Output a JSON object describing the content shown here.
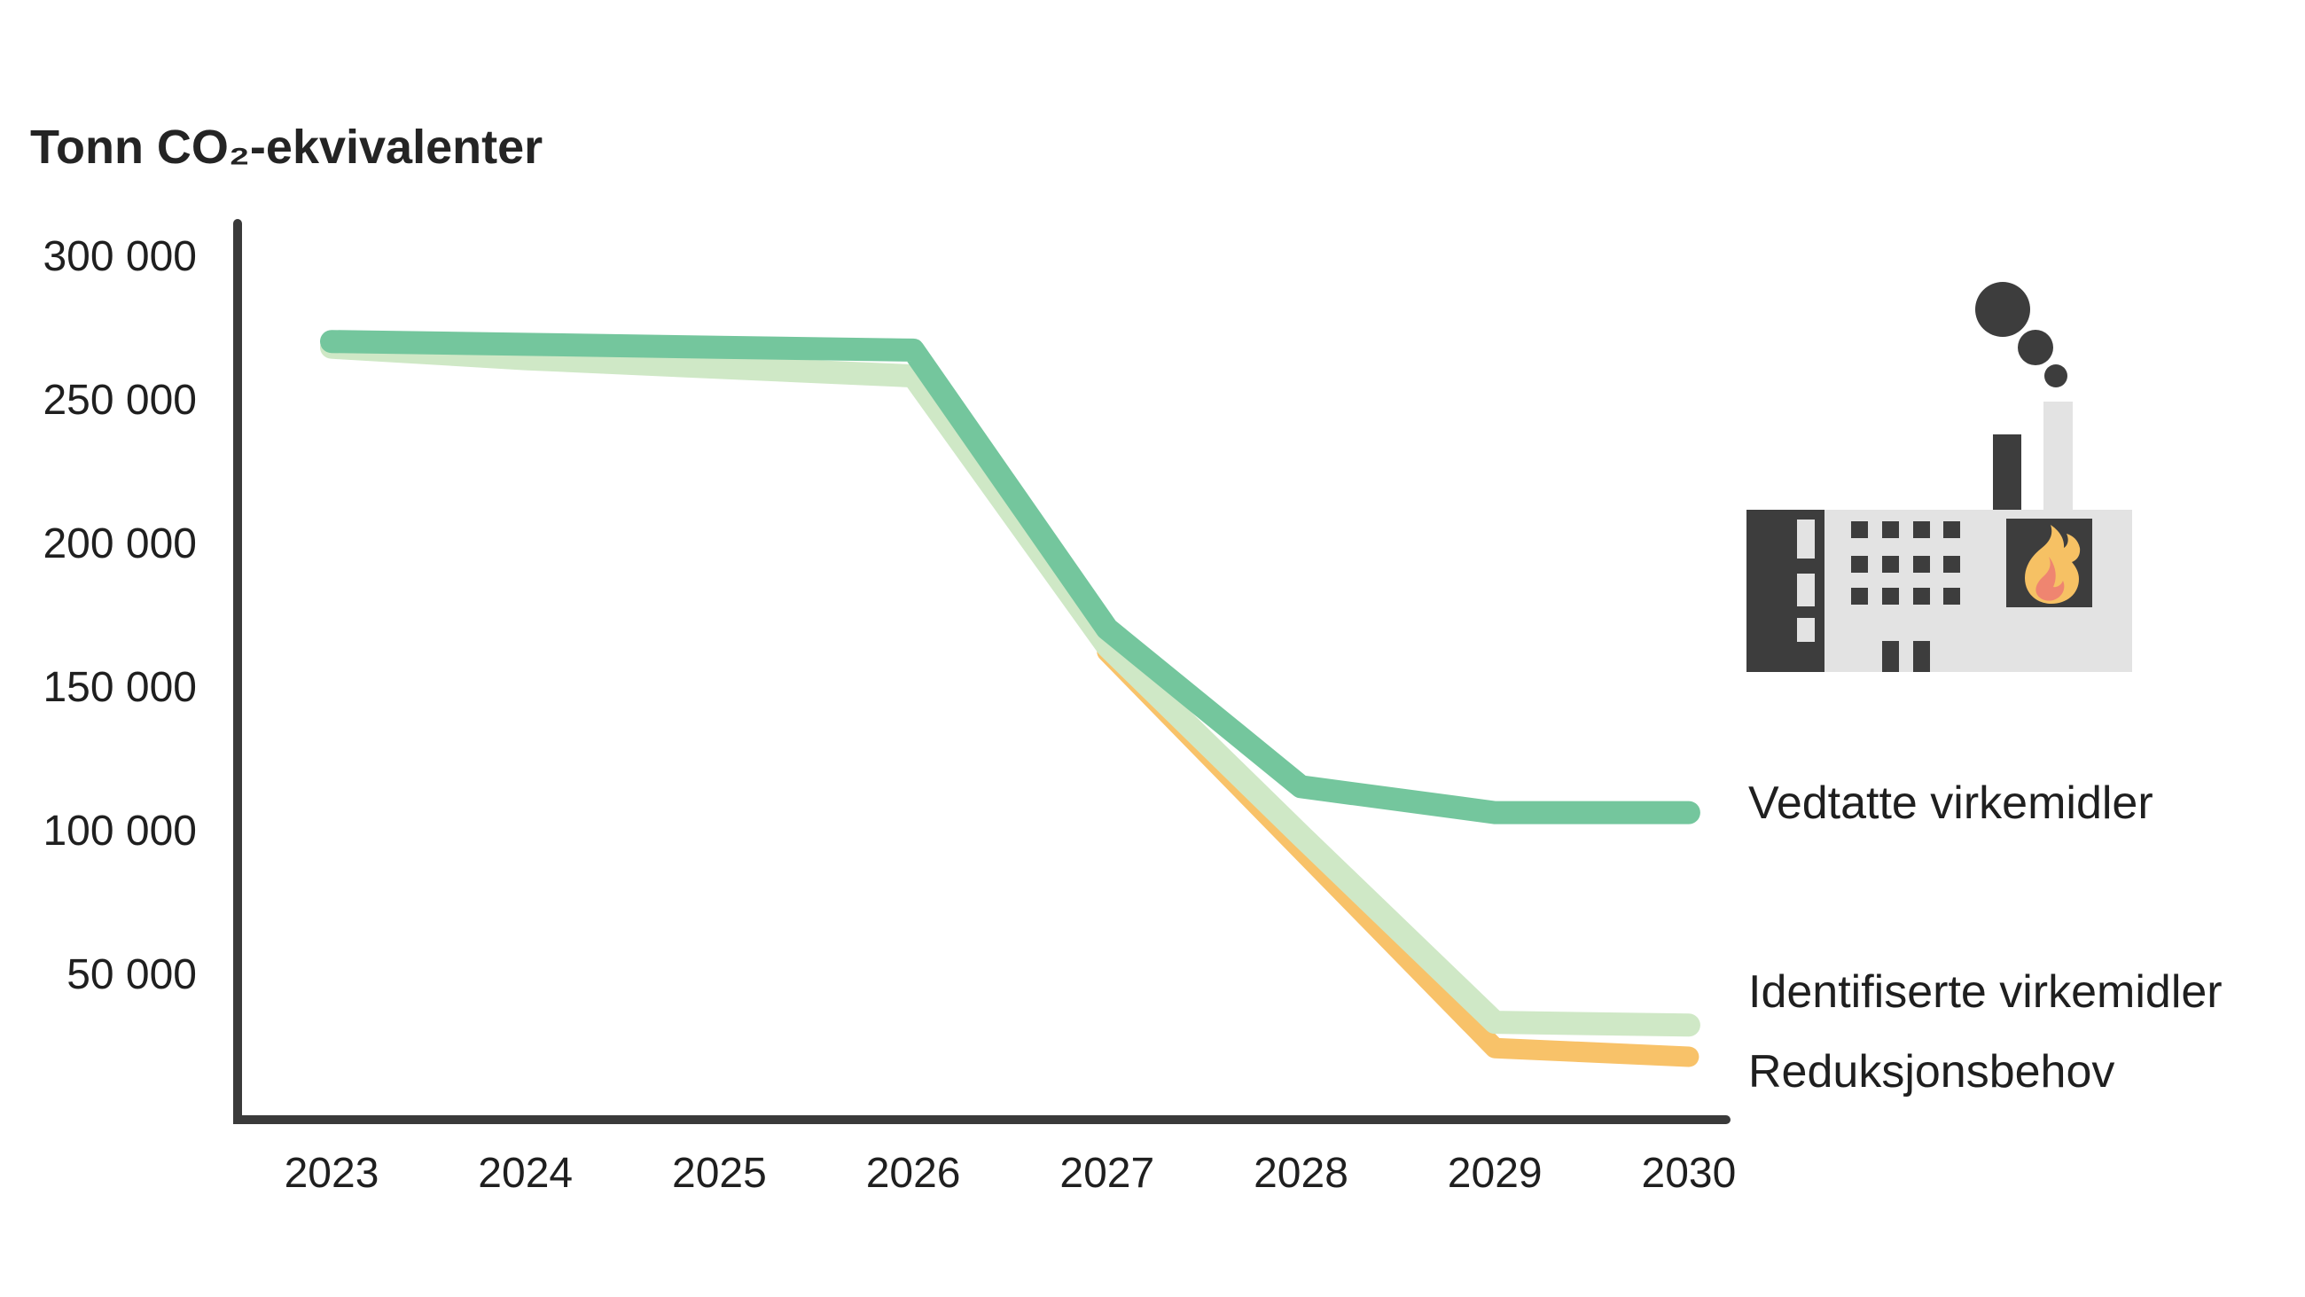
{
  "title": "Tonn CO₂-ekvivalenter",
  "colors": {
    "axis": "#3a3a3a",
    "text": "#1f1f1f",
    "vedtatte_green": "#74c69d",
    "identifiserte_light_green": "#cfe8c6",
    "reduksjonsbehov_orange": "#f8c269",
    "icon_dark": "#3d3d3d",
    "icon_light": "#e3e3e3",
    "flame_yellow": "#f6c164",
    "flame_salmon": "#ef8570"
  },
  "chart_data": {
    "type": "line",
    "title": "Tonn CO₂-ekvivalenter",
    "x": [
      2023,
      2024,
      2025,
      2026,
      2027,
      2028,
      2029,
      2030
    ],
    "series": [
      {
        "name": "Vedtatte virkemidler",
        "color": "#74c69d",
        "values": [
          270000,
          269000,
          268000,
          267000,
          170000,
          115000,
          106000,
          106000
        ]
      },
      {
        "name": "Identifiserte virkemidler",
        "color": "#cfe8c6",
        "values": [
          268000,
          264000,
          261000,
          258000,
          164000,
          98000,
          33000,
          32000
        ]
      },
      {
        "name": "Reduksjonsbehov",
        "color": "#f8c269",
        "values": [
          null,
          null,
          null,
          null,
          162000,
          93000,
          24000,
          21000
        ]
      }
    ],
    "ylabel": "Tonn CO₂-ekvivalenter",
    "xlabel": "",
    "ylim": [
      0,
      310000
    ],
    "yticks": [
      {
        "label": "300 000",
        "value": 300000
      },
      {
        "label": "250 000",
        "value": 250000
      },
      {
        "label": "200 000",
        "value": 200000
      },
      {
        "label": "150 000",
        "value": 150000
      },
      {
        "label": "100 000",
        "value": 100000
      },
      {
        "label": "50 000",
        "value": 50000
      }
    ],
    "grid": false,
    "legend_position": "right of line ends"
  },
  "icon": {
    "name": "factory-with-smoke-and-flame"
  }
}
